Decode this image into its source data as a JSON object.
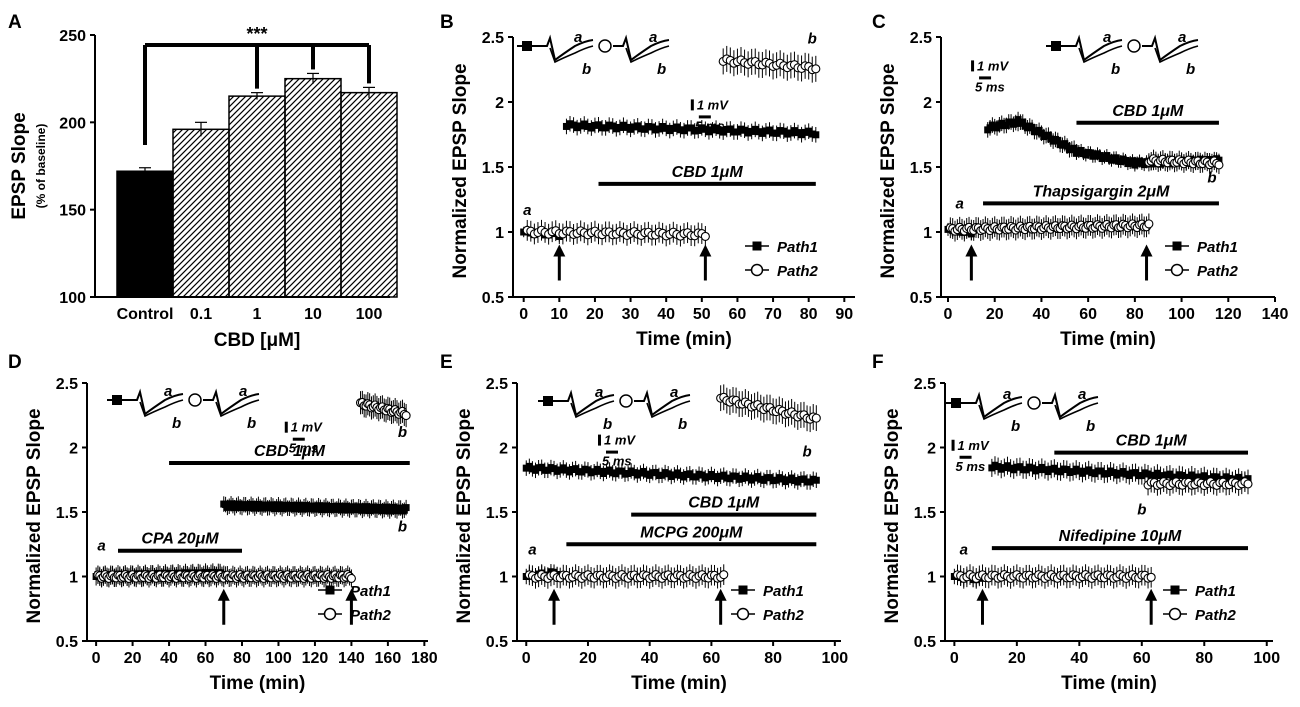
{
  "figure": {
    "panel_letters": [
      "A",
      "B",
      "C",
      "D",
      "E",
      "F"
    ],
    "path1_label": "Path1",
    "path2_label": "Path2",
    "trace_a": "a",
    "trace_b": "b",
    "scale_mv": "1 mV",
    "scale_ms": "5 ms",
    "significance": "***"
  },
  "chart_data": [
    {
      "panel": "A",
      "type": "bar",
      "title": "",
      "ylabel": "EPSP Slope",
      "ylabel_sub": "(% of baseline)",
      "xlabel": "CBD [μM]",
      "categories": [
        "Control",
        "0.1",
        "1",
        "10",
        "100"
      ],
      "values": [
        172,
        196,
        215,
        225,
        217
      ],
      "errors": [
        2,
        4,
        2,
        3,
        3
      ],
      "ylim": [
        100,
        250
      ],
      "yticks": [
        100,
        150,
        200,
        250
      ]
    },
    {
      "panel": "B",
      "type": "scatter",
      "xlabel": "Time (min)",
      "ylabel": "Normalized EPSP Slope",
      "xlim": [
        -3,
        93
      ],
      "ylim": [
        0.5,
        2.5
      ],
      "xticks": [
        0,
        10,
        20,
        30,
        40,
        50,
        60,
        70,
        80,
        90
      ],
      "yticks": [
        "0.5",
        "1",
        "1.5",
        "2",
        "2.5"
      ],
      "series": [
        {
          "name": "Path1",
          "filled": true,
          "segments": [
            {
              "x0": 12,
              "x1": 82,
              "y0": 1.82,
              "y1": 1.76,
              "err": 0.06
            },
            {
              "x0": 0,
              "x1": 10,
              "y0": 1.0,
              "y1": 0.98,
              "err": 0.04
            }
          ]
        },
        {
          "name": "Path2",
          "filled": false,
          "segments": [
            {
              "x0": 1,
              "x1": 51,
              "y0": 1.0,
              "y1": 0.98,
              "err": 0.08
            },
            {
              "x0": 56,
              "x1": 82,
              "y0": 2.32,
              "y1": 2.26,
              "err": 0.1
            }
          ]
        }
      ],
      "bars": [
        {
          "label": "CBD 1μM",
          "x0": 21,
          "x1": 82,
          "y": 1.37
        }
      ],
      "arrows": [
        10,
        51
      ],
      "marks": [
        {
          "text": "a",
          "x": 1,
          "y": 1.13
        },
        {
          "text": "b",
          "x": 81,
          "y": 2.45
        }
      ],
      "scale_pos": [
        0.52,
        0.24
      ]
    },
    {
      "panel": "C",
      "type": "scatter",
      "xlabel": "Time (min)",
      "ylabel": "Normalized EPSP Slope",
      "xlim": [
        -3,
        140
      ],
      "ylim": [
        0.5,
        2.5
      ],
      "xticks": [
        0,
        20,
        40,
        60,
        80,
        100,
        120,
        140
      ],
      "yticks": [
        "0.5",
        "1",
        "1.5",
        "2",
        "2.5"
      ],
      "series": [
        {
          "name": "Path1",
          "filled": true,
          "segments": [
            {
              "x0": 0,
              "x1": 10,
              "y0": 1.02,
              "y1": 1.0,
              "err": 0.05
            },
            {
              "x0": 17,
              "x1": 30,
              "y0": 1.8,
              "y1": 1.85,
              "err": 0.06
            },
            {
              "x0": 30,
              "x1": 55,
              "y0": 1.85,
              "y1": 1.62,
              "err": 0.06
            },
            {
              "x0": 55,
              "x1": 80,
              "y0": 1.62,
              "y1": 1.53,
              "err": 0.05
            },
            {
              "x0": 80,
              "x1": 116,
              "y0": 1.53,
              "y1": 1.55,
              "err": 0.05
            }
          ]
        },
        {
          "name": "Path2",
          "filled": false,
          "segments": [
            {
              "x0": 1,
              "x1": 86,
              "y0": 1.02,
              "y1": 1.05,
              "err": 0.08
            },
            {
              "x0": 86,
              "x1": 116,
              "y0": 1.55,
              "y1": 1.53,
              "err": 0.07
            }
          ]
        }
      ],
      "bars": [
        {
          "label": "CBD 1μM",
          "x0": 55,
          "x1": 116,
          "y": 1.84
        },
        {
          "label": "Thapsigargin 2μM",
          "x0": 15,
          "x1": 116,
          "y": 1.22
        }
      ],
      "arrows": [
        10,
        85
      ],
      "marks": [
        {
          "text": "a",
          "x": 5,
          "y": 1.18
        },
        {
          "text": "b",
          "x": 113,
          "y": 1.38
        }
      ],
      "scale_pos": [
        0.09,
        0.09
      ]
    },
    {
      "panel": "D",
      "type": "scatter",
      "xlabel": "Time (min)",
      "ylabel": "Normalized EPSP Slope",
      "xlim": [
        -5,
        182
      ],
      "ylim": [
        0.5,
        2.5
      ],
      "xticks": [
        0,
        20,
        40,
        60,
        80,
        100,
        120,
        140,
        160,
        180
      ],
      "yticks": [
        "0.5",
        "1",
        "1.5",
        "2",
        "2.5"
      ],
      "series": [
        {
          "name": "Path1",
          "filled": true,
          "segments": [
            {
              "x0": 0,
              "x1": 70,
              "y0": 1.0,
              "y1": 1.02,
              "err": 0.07
            },
            {
              "x0": 70,
              "x1": 170,
              "y0": 1.55,
              "y1": 1.52,
              "err": 0.06
            }
          ]
        },
        {
          "name": "Path2",
          "filled": false,
          "segments": [
            {
              "x0": 1,
              "x1": 140,
              "y0": 1.0,
              "y1": 1.0,
              "err": 0.07
            },
            {
              "x0": 145,
              "x1": 170,
              "y0": 2.34,
              "y1": 2.26,
              "err": 0.09
            }
          ]
        }
      ],
      "bars": [
        {
          "label": "CBD 1μM",
          "x0": 40,
          "x1": 172,
          "y": 1.88
        },
        {
          "label": "CPA 20μM",
          "x0": 12,
          "x1": 80,
          "y": 1.2
        }
      ],
      "arrows": [
        70,
        140
      ],
      "marks": [
        {
          "text": "a",
          "x": 3,
          "y": 1.2
        },
        {
          "text": "b",
          "x": 168,
          "y": 1.35
        },
        {
          "text": "b",
          "x": 168,
          "y": 2.08
        }
      ],
      "scale_pos": [
        0.58,
        0.15
      ]
    },
    {
      "panel": "E",
      "type": "scatter",
      "xlabel": "Time (min)",
      "ylabel": "Normalized EPSP Slope",
      "xlim": [
        -3,
        102
      ],
      "ylim": [
        0.5,
        2.5
      ],
      "xticks": [
        0,
        20,
        40,
        60,
        80,
        100
      ],
      "yticks": [
        "0.5",
        "1",
        "1.5",
        "2",
        "2.5"
      ],
      "series": [
        {
          "name": "Path1",
          "filled": true,
          "segments": [
            {
              "x0": 0,
              "x1": 10,
              "y0": 1.0,
              "y1": 1.03,
              "err": 0.06
            },
            {
              "x0": 0,
              "x1": 94,
              "y0": 1.84,
              "y1": 1.74,
              "err": 0.06
            }
          ]
        },
        {
          "name": "Path2",
          "filled": false,
          "segments": [
            {
              "x0": 1,
              "x1": 64,
              "y0": 1.0,
              "y1": 1.0,
              "err": 0.08
            },
            {
              "x0": 63,
              "x1": 94,
              "y0": 2.38,
              "y1": 2.22,
              "err": 0.1
            }
          ]
        }
      ],
      "bars": [
        {
          "label": "CBD 1μM",
          "x0": 34,
          "x1": 94,
          "y": 1.48
        },
        {
          "label": "MCPG 200μM",
          "x0": 13,
          "x1": 94,
          "y": 1.25
        }
      ],
      "arrows": [
        9,
        63
      ],
      "marks": [
        {
          "text": "a",
          "x": 2,
          "y": 1.17
        },
        {
          "text": "b",
          "x": 91,
          "y": 1.93
        }
      ],
      "scale_pos": [
        0.25,
        0.2
      ]
    },
    {
      "panel": "F",
      "type": "scatter",
      "xlabel": "Time (min)",
      "ylabel": "Normalized EPSP Slope",
      "xlim": [
        -3,
        102
      ],
      "ylim": [
        0.5,
        2.5
      ],
      "xticks": [
        0,
        20,
        40,
        60,
        80,
        100
      ],
      "yticks": [
        "0.5",
        "1",
        "1.5",
        "2",
        "2.5"
      ],
      "series": [
        {
          "name": "Path1",
          "filled": true,
          "segments": [
            {
              "x0": 0,
              "x1": 9,
              "y0": 1.0,
              "y1": 0.98,
              "err": 0.06
            },
            {
              "x0": 12,
              "x1": 94,
              "y0": 1.85,
              "y1": 1.75,
              "err": 0.07
            }
          ]
        },
        {
          "name": "Path2",
          "filled": false,
          "segments": [
            {
              "x0": 1,
              "x1": 63,
              "y0": 1.0,
              "y1": 1.0,
              "err": 0.08
            },
            {
              "x0": 62,
              "x1": 94,
              "y0": 1.72,
              "y1": 1.72,
              "err": 0.08
            }
          ]
        }
      ],
      "bars": [
        {
          "label": "CBD 1μM",
          "x0": 32,
          "x1": 94,
          "y": 1.96
        },
        {
          "label": "Nifedipine 10μM",
          "x0": 12,
          "x1": 94,
          "y": 1.22
        }
      ],
      "arrows": [
        9,
        63
      ],
      "marks": [
        {
          "text": "a",
          "x": 3,
          "y": 1.17
        },
        {
          "text": "b",
          "x": 60,
          "y": 1.48
        }
      ],
      "scale_pos": [
        0.02,
        0.22
      ]
    }
  ]
}
